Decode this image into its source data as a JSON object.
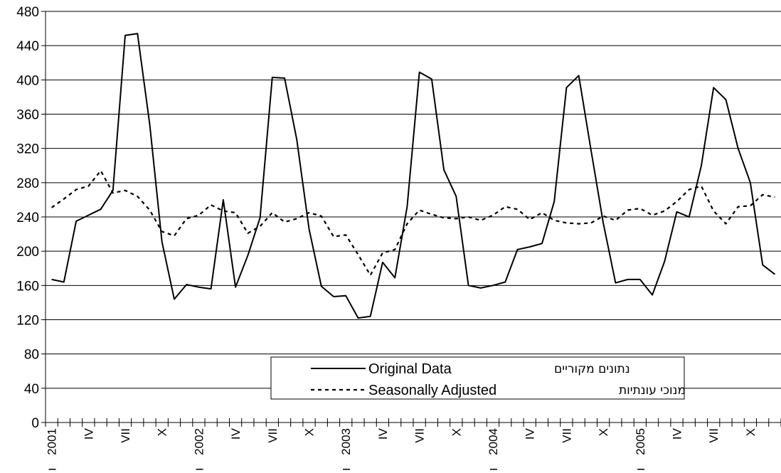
{
  "chart_data": {
    "type": "line",
    "title": "",
    "xlabel": "",
    "ylabel": "",
    "ylim": [
      0,
      480
    ],
    "yticks": [
      0,
      40,
      80,
      120,
      160,
      200,
      240,
      280,
      320,
      360,
      400,
      440,
      480
    ],
    "grid": "horizontal",
    "x_tick_labels": [
      {
        "index": 0,
        "text": "2001"
      },
      {
        "index": 3,
        "text": "IV"
      },
      {
        "index": 6,
        "text": "VII"
      },
      {
        "index": 9,
        "text": "X"
      },
      {
        "index": 12,
        "text": "2002"
      },
      {
        "index": 15,
        "text": "IV"
      },
      {
        "index": 18,
        "text": "VII"
      },
      {
        "index": 21,
        "text": "X"
      },
      {
        "index": 24,
        "text": "2003"
      },
      {
        "index": 27,
        "text": "IV"
      },
      {
        "index": 30,
        "text": "VII"
      },
      {
        "index": 33,
        "text": "X"
      },
      {
        "index": 36,
        "text": "2004"
      },
      {
        "index": 39,
        "text": "IV"
      },
      {
        "index": 42,
        "text": "VII"
      },
      {
        "index": 45,
        "text": "X"
      },
      {
        "index": 48,
        "text": "2005"
      },
      {
        "index": 51,
        "text": "IV"
      },
      {
        "index": 54,
        "text": "VII"
      },
      {
        "index": 57,
        "text": "X"
      }
    ],
    "year_marker": "ו",
    "year_marker_indices": [
      0,
      12,
      24,
      36,
      48
    ],
    "series": [
      {
        "name": "Original Data",
        "name_hebrew": "נתונים מקוריים",
        "style": "solid",
        "values": [
          167,
          164,
          235,
          242,
          249,
          271,
          452,
          454,
          348,
          211,
          144,
          161,
          158,
          156,
          260,
          158,
          195,
          239,
          403,
          402,
          330,
          226,
          159,
          147,
          148,
          122,
          124,
          187,
          169,
          252,
          409,
          401,
          295,
          264,
          160,
          157,
          160,
          164,
          202,
          205,
          209,
          258,
          391,
          405,
          318,
          233,
          163,
          167,
          167,
          149,
          188,
          246,
          240,
          300,
          391,
          377,
          320,
          280,
          184,
          173
        ]
      },
      {
        "name": "Seasonally Adjusted",
        "name_hebrew": "מנוכי עונתיות",
        "style": "dashed",
        "values": [
          251,
          261,
          272,
          276,
          294,
          268,
          271,
          264,
          248,
          223,
          218,
          238,
          242,
          254,
          247,
          245,
          221,
          229,
          245,
          234,
          238,
          245,
          241,
          217,
          219,
          196,
          172,
          198,
          202,
          232,
          248,
          243,
          239,
          238,
          240,
          236,
          242,
          252,
          249,
          237,
          245,
          236,
          233,
          232,
          233,
          241,
          236,
          248,
          250,
          242,
          247,
          258,
          272,
          276,
          247,
          232,
          252,
          253,
          266,
          263
        ]
      }
    ],
    "legend": {
      "position": "bottom-center"
    }
  }
}
